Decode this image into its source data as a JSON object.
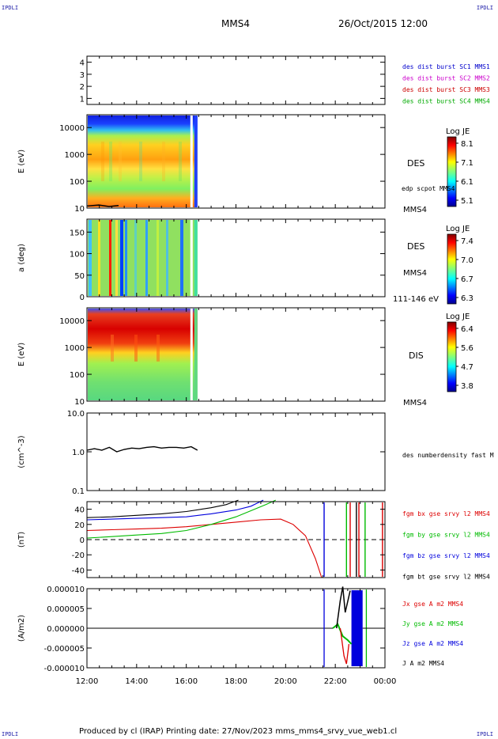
{
  "header": {
    "logo_text": "IPDLI",
    "spacecraft": "MMS4",
    "datetime": "26/Oct/2015 12:00"
  },
  "footer": {
    "text": "Produced by cl (IRAP)   Printing date: 27/Nov/2023   mms_mms4_srvy_vue_web1.cl"
  },
  "colors": {
    "mms1": "#0000cc",
    "mms2": "#cc00cc",
    "mms3": "#cc0000",
    "mms4": "#00aa00",
    "bx": "#dd0000",
    "by": "#00bb00",
    "bz": "#0000dd",
    "bt": "#000000"
  },
  "chart_data": [
    {
      "type": "line",
      "name": "des-dist-burst-panel",
      "ylim": [
        0.5,
        4.5
      ],
      "yticks": [
        "1",
        "2",
        "3",
        "4"
      ],
      "legend": [
        {
          "label": "des dist burst SC1 MMS1",
          "color_key": "mms1"
        },
        {
          "label": "des dist burst SC2 MMS2",
          "color_key": "mms2"
        },
        {
          "label": "des dist burst SC3 MMS3",
          "color_key": "mms3"
        },
        {
          "label": "des dist burst SC4 MMS4",
          "color_key": "mms4"
        }
      ]
    },
    {
      "type": "heatmap",
      "name": "des-energy-spectrogram",
      "ylabel": "E (eV)",
      "yscale": "log",
      "ylim": [
        10,
        30000
      ],
      "yticks": [
        "10",
        "100",
        "1000",
        "10000"
      ],
      "instrument": "DES",
      "overlay_label": "edp scpot MMS4",
      "spacecraft": "MMS4",
      "colorbar": {
        "title": "Log JE",
        "range": [
          5.1,
          8.1
        ],
        "ticks": [
          "8.1",
          "7.1",
          "6.1",
          "5.1"
        ]
      },
      "data_extent_hours": [
        12.0,
        16.45
      ]
    },
    {
      "type": "heatmap",
      "name": "des-pitch-angle-spectrogram",
      "ylabel": "a (deg)",
      "ylim": [
        0,
        180
      ],
      "yticks": [
        "0",
        "50",
        "100",
        "150"
      ],
      "instrument": "DES",
      "spacecraft": "MMS4",
      "energy_range": "111-146 eV",
      "colorbar": {
        "title": "Log JE",
        "range": [
          6.3,
          7.4
        ],
        "ticks": [
          "7.4",
          "7.0",
          "6.7",
          "6.3"
        ]
      },
      "data_extent_hours": [
        12.0,
        16.45
      ]
    },
    {
      "type": "heatmap",
      "name": "dis-energy-spectrogram",
      "ylabel": "E (eV)",
      "yscale": "log",
      "ylim": [
        10,
        30000
      ],
      "yticks": [
        "10",
        "100",
        "1000",
        "10000"
      ],
      "instrument": "DIS",
      "spacecraft": "MMS4",
      "colorbar": {
        "title": "Log JE",
        "range": [
          3.8,
          6.4
        ],
        "ticks": [
          "6.4",
          "5.6",
          "4.7",
          "3.8"
        ]
      },
      "data_extent_hours": [
        12.0,
        16.45
      ]
    },
    {
      "type": "line",
      "name": "electron-density-panel",
      "ylabel": "(cm^-3)",
      "yscale": "log",
      "ylim": [
        0.1,
        10.0
      ],
      "yticks": [
        "0.1",
        "1.0",
        "10.0"
      ],
      "series": [
        {
          "name": "des numberdensity fast M",
          "color_key": "bt",
          "x": [
            12.0,
            12.3,
            12.6,
            12.9,
            13.2,
            13.5,
            13.8,
            14.1,
            14.4,
            14.7,
            15.0,
            15.3,
            15.6,
            15.9,
            16.2,
            16.45
          ],
          "y": [
            1.1,
            1.2,
            1.1,
            1.3,
            1.0,
            1.15,
            1.25,
            1.2,
            1.3,
            1.35,
            1.25,
            1.3,
            1.3,
            1.25,
            1.35,
            1.1
          ]
        }
      ]
    },
    {
      "type": "line",
      "name": "magnetic-field-panel",
      "ylabel": "(nT)",
      "ylim": [
        -50,
        50
      ],
      "yticks": [
        "-40",
        "-20",
        "0",
        "20",
        "40"
      ],
      "series": [
        {
          "name": "fgm bx gse srvy l2 MMS4",
          "color_key": "bx",
          "x": [
            12.0,
            13.0,
            14.0,
            15.0,
            16.0,
            17.0,
            18.0,
            19.0,
            19.8,
            20.3,
            20.8,
            21.2,
            21.45
          ],
          "y": [
            12,
            13,
            14,
            15,
            17,
            20,
            23,
            26,
            27,
            20,
            5,
            -25,
            -50
          ]
        },
        {
          "name": "fgm by gse srvy l2 MMS4",
          "color_key": "by",
          "x": [
            12.0,
            13.0,
            14.0,
            15.0,
            16.0,
            17.0,
            18.0,
            18.6,
            19.2,
            19.6
          ],
          "y": [
            2,
            4,
            6,
            8,
            12,
            20,
            30,
            38,
            46,
            52
          ]
        },
        {
          "name": "fgm bz gse srvy l2 MMS4",
          "color_key": "bz",
          "x": [
            12.0,
            13.0,
            14.0,
            15.0,
            16.0,
            17.0,
            18.0,
            18.6,
            19.1
          ],
          "y": [
            26,
            27,
            28,
            29,
            30,
            34,
            39,
            44,
            52
          ]
        },
        {
          "name": "fgm bt gse srvy l2 MMS4",
          "color_key": "bt",
          "x": [
            12.0,
            13.0,
            14.0,
            15.0,
            16.0,
            17.0,
            17.6,
            18.1
          ],
          "y": [
            29,
            30,
            32,
            34,
            37,
            42,
            46,
            52
          ]
        }
      ]
    },
    {
      "type": "line",
      "name": "current-density-panel",
      "ylabel": "(A/m2)",
      "ylim": [
        -1e-05,
        1e-05
      ],
      "yticks": [
        "0.000010",
        "0.000005",
        "0.000000",
        "-0.000005",
        "-0.000010"
      ],
      "xlim": [
        12,
        24
      ],
      "xticks": [
        "12:00",
        "14:00",
        "16:00",
        "18:00",
        "20:00",
        "22:00",
        "00:00"
      ],
      "series": [
        {
          "name": "Jx gse A m2 MMS4",
          "color_key": "bx"
        },
        {
          "name": "Jy gse A m2 MMS4",
          "color_key": "by"
        },
        {
          "name": "Jz gse A m2 MMS4",
          "color_key": "bz"
        },
        {
          "name": "J A m2 MMS4",
          "color_key": "bt"
        }
      ]
    }
  ]
}
